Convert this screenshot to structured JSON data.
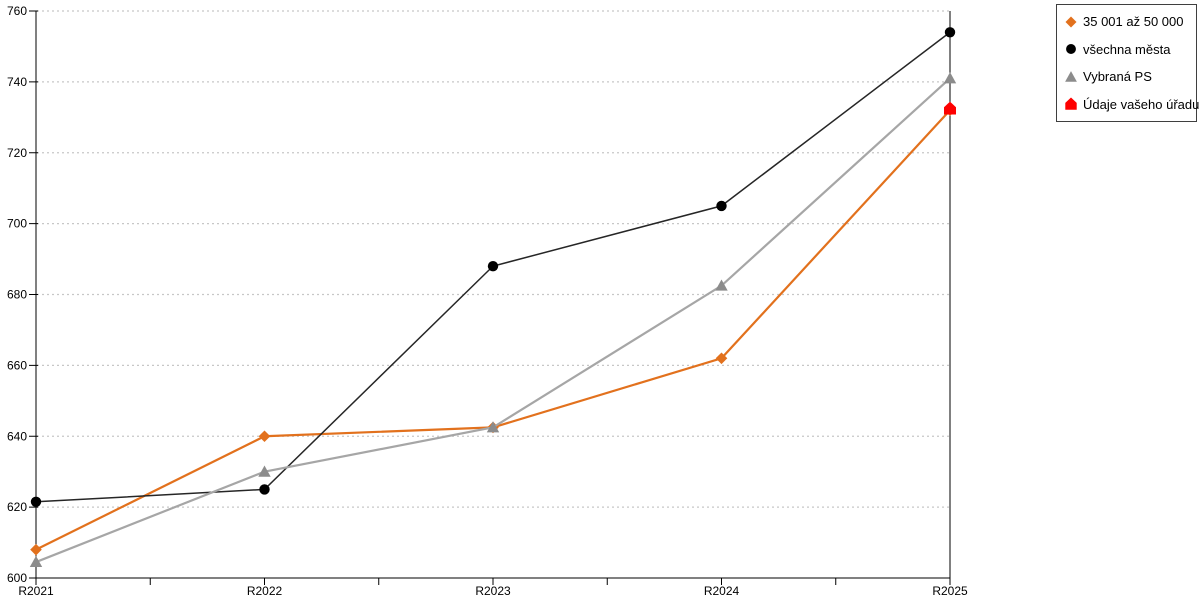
{
  "chart_data": {
    "type": "line",
    "categories": [
      "R2021",
      "R2022",
      "R2023",
      "R2024",
      "R2025"
    ],
    "series": [
      {
        "name": "35 001 až 50 000",
        "marker": "diamond",
        "color": "#E2711D",
        "values": [
          608,
          640,
          642.5,
          662,
          732
        ]
      },
      {
        "name": "všechna města",
        "marker": "circle",
        "color": "#000000",
        "line_color": "#262626",
        "values": [
          621.5,
          625,
          688,
          705,
          754
        ]
      },
      {
        "name": "Vybraná PS",
        "marker": "triangle",
        "color": "#8C8C8C",
        "line_color": "#A6A6A6",
        "values": [
          604.5,
          630,
          642.5,
          682.5,
          741
        ]
      },
      {
        "name": "Údaje vašeho úřadu",
        "marker": "pentagon",
        "color": "#FE0000",
        "values": [
          null,
          null,
          null,
          null,
          732.5
        ]
      }
    ],
    "ylim": [
      600,
      760
    ],
    "yticks": [
      600,
      620,
      640,
      660,
      680,
      700,
      720,
      740,
      760
    ],
    "grid": {
      "horizontal": "dotted",
      "color": "#C7C7C7"
    },
    "legend_position": "top-right"
  }
}
